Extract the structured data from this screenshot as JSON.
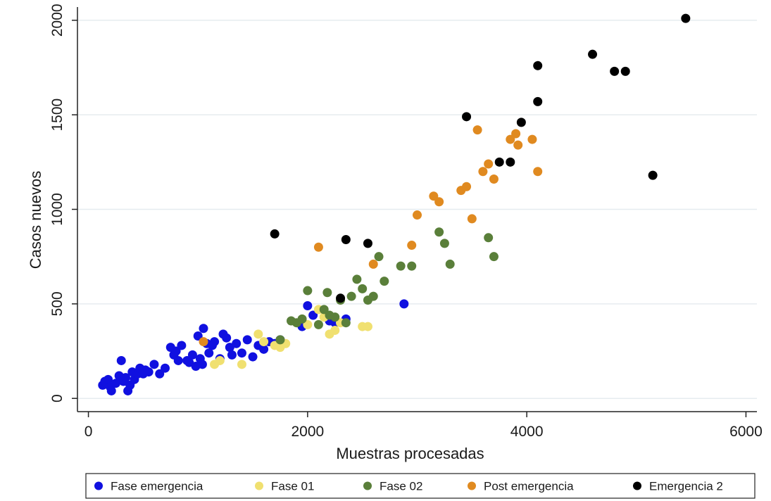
{
  "chart_data": {
    "type": "scatter",
    "title": "",
    "xlabel": "Muestras procesadas",
    "ylabel": "Casos nuevos",
    "xlim": [
      -100,
      6100
    ],
    "ylim": [
      -70,
      2070
    ],
    "xticks": [
      0,
      2000,
      4000,
      6000
    ],
    "yticks": [
      0,
      500,
      1000,
      1500,
      2000
    ],
    "grid": "horizontal",
    "legend_position": "bottom",
    "series": [
      {
        "name": "Fase emergencia",
        "color": "#1010e0",
        "points": [
          [
            130,
            70
          ],
          [
            150,
            90
          ],
          [
            180,
            100
          ],
          [
            200,
            60
          ],
          [
            210,
            40
          ],
          [
            250,
            80
          ],
          [
            280,
            120
          ],
          [
            300,
            200
          ],
          [
            320,
            90
          ],
          [
            340,
            110
          ],
          [
            360,
            40
          ],
          [
            380,
            70
          ],
          [
            400,
            140
          ],
          [
            420,
            100
          ],
          [
            450,
            130
          ],
          [
            470,
            160
          ],
          [
            500,
            130
          ],
          [
            520,
            150
          ],
          [
            550,
            140
          ],
          [
            600,
            180
          ],
          [
            650,
            130
          ],
          [
            700,
            160
          ],
          [
            750,
            270
          ],
          [
            780,
            230
          ],
          [
            800,
            250
          ],
          [
            820,
            200
          ],
          [
            850,
            280
          ],
          [
            900,
            200
          ],
          [
            920,
            190
          ],
          [
            950,
            230
          ],
          [
            980,
            170
          ],
          [
            1000,
            330
          ],
          [
            1020,
            210
          ],
          [
            1040,
            180
          ],
          [
            1050,
            370
          ],
          [
            1080,
            290
          ],
          [
            1100,
            240
          ],
          [
            1130,
            280
          ],
          [
            1150,
            300
          ],
          [
            1200,
            210
          ],
          [
            1230,
            340
          ],
          [
            1260,
            320
          ],
          [
            1290,
            270
          ],
          [
            1310,
            230
          ],
          [
            1350,
            290
          ],
          [
            1400,
            240
          ],
          [
            1450,
            310
          ],
          [
            1500,
            220
          ],
          [
            1550,
            280
          ],
          [
            1600,
            260
          ],
          [
            1650,
            300
          ],
          [
            1700,
            290
          ],
          [
            1750,
            310
          ],
          [
            1950,
            380
          ],
          [
            2000,
            490
          ],
          [
            2050,
            440
          ],
          [
            2200,
            410
          ],
          [
            2250,
            400
          ],
          [
            2350,
            420
          ],
          [
            2880,
            500
          ]
        ]
      },
      {
        "name": "Fase 01",
        "color": "#f0e070",
        "points": [
          [
            1150,
            180
          ],
          [
            1200,
            200
          ],
          [
            1400,
            180
          ],
          [
            1550,
            340
          ],
          [
            1600,
            300
          ],
          [
            1700,
            280
          ],
          [
            1750,
            270
          ],
          [
            1800,
            290
          ],
          [
            2000,
            390
          ],
          [
            2100,
            470
          ],
          [
            2150,
            430
          ],
          [
            2200,
            340
          ],
          [
            2250,
            360
          ],
          [
            2300,
            400
          ],
          [
            2500,
            380
          ],
          [
            2550,
            380
          ]
        ]
      },
      {
        "name": "Fase 02",
        "color": "#5a7f3a",
        "points": [
          [
            1750,
            310
          ],
          [
            1850,
            410
          ],
          [
            1900,
            400
          ],
          [
            1950,
            420
          ],
          [
            2000,
            570
          ],
          [
            2100,
            390
          ],
          [
            2150,
            470
          ],
          [
            2180,
            560
          ],
          [
            2200,
            440
          ],
          [
            2250,
            430
          ],
          [
            2300,
            520
          ],
          [
            2350,
            400
          ],
          [
            2400,
            540
          ],
          [
            2450,
            630
          ],
          [
            2500,
            580
          ],
          [
            2550,
            520
          ],
          [
            2600,
            540
          ],
          [
            2650,
            750
          ],
          [
            2700,
            620
          ],
          [
            2850,
            700
          ],
          [
            2950,
            700
          ],
          [
            3200,
            880
          ],
          [
            3250,
            820
          ],
          [
            3300,
            710
          ],
          [
            3650,
            850
          ],
          [
            3700,
            750
          ]
        ]
      },
      {
        "name": "Post emergencia",
        "color": "#e08a20",
        "points": [
          [
            1050,
            300
          ],
          [
            2100,
            800
          ],
          [
            2600,
            710
          ],
          [
            2950,
            810
          ],
          [
            3000,
            970
          ],
          [
            3150,
            1070
          ],
          [
            3200,
            1040
          ],
          [
            3400,
            1100
          ],
          [
            3450,
            1120
          ],
          [
            3500,
            950
          ],
          [
            3550,
            1420
          ],
          [
            3600,
            1200
          ],
          [
            3650,
            1240
          ],
          [
            3700,
            1160
          ],
          [
            3850,
            1370
          ],
          [
            3900,
            1400
          ],
          [
            3920,
            1340
          ],
          [
            4050,
            1370
          ],
          [
            4100,
            1200
          ]
        ]
      },
      {
        "name": "Emergencia 2",
        "color": "#000000",
        "points": [
          [
            1700,
            870
          ],
          [
            2300,
            530
          ],
          [
            2350,
            840
          ],
          [
            2550,
            820
          ],
          [
            3450,
            1490
          ],
          [
            3750,
            1250
          ],
          [
            3850,
            1250
          ],
          [
            3950,
            1460
          ],
          [
            4100,
            1760
          ],
          [
            4100,
            1570
          ],
          [
            4600,
            1820
          ],
          [
            4800,
            1730
          ],
          [
            4900,
            1730
          ],
          [
            5150,
            1180
          ],
          [
            5450,
            2010
          ]
        ]
      }
    ]
  }
}
